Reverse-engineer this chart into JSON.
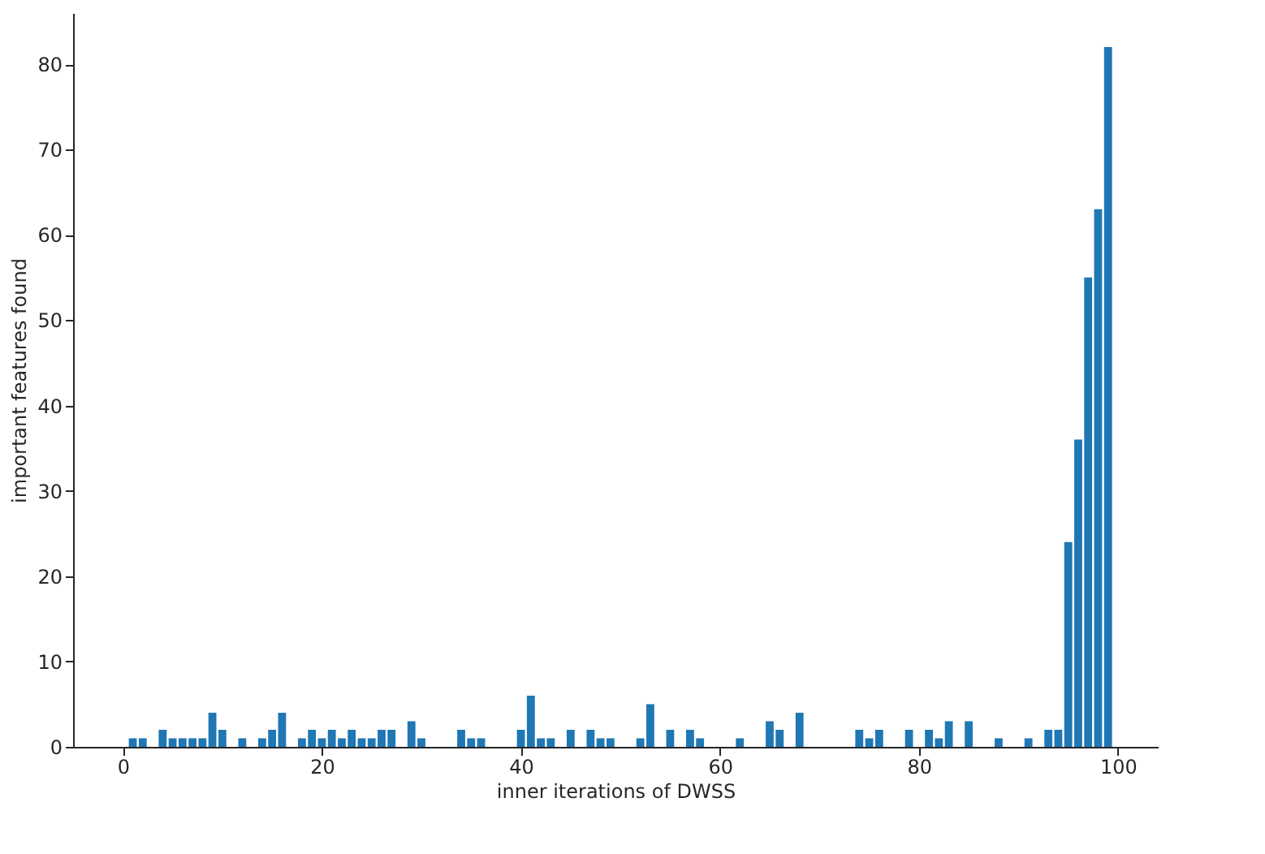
{
  "chart_data": {
    "type": "bar",
    "xlabel": "inner iterations of DWSS",
    "ylabel": "important features found",
    "x": [
      1,
      2,
      4,
      5,
      6,
      7,
      8,
      9,
      10,
      12,
      14,
      15,
      16,
      18,
      19,
      20,
      21,
      22,
      23,
      24,
      25,
      26,
      27,
      29,
      30,
      34,
      35,
      36,
      40,
      41,
      42,
      43,
      45,
      47,
      48,
      49,
      52,
      53,
      55,
      57,
      58,
      62,
      65,
      66,
      68,
      74,
      75,
      76,
      79,
      81,
      82,
      83,
      85,
      88,
      91,
      93,
      94,
      95,
      96,
      97,
      98,
      99
    ],
    "values": [
      1,
      1,
      2,
      1,
      1,
      1,
      1,
      4,
      2,
      1,
      1,
      2,
      4,
      1,
      2,
      1,
      2,
      1,
      2,
      1,
      1,
      2,
      2,
      3,
      1,
      2,
      1,
      1,
      2,
      6,
      1,
      1,
      2,
      2,
      1,
      1,
      1,
      5,
      2,
      2,
      1,
      1,
      3,
      2,
      4,
      2,
      1,
      2,
      2,
      2,
      1,
      3,
      3,
      1,
      1,
      2,
      2,
      24,
      36,
      55,
      63,
      82
    ],
    "color": "#1f77b4",
    "xlim": [
      -5,
      104
    ],
    "xticks": [
      0,
      20,
      40,
      60,
      80,
      100
    ],
    "ylim": [
      0,
      86
    ],
    "yticks": [
      0,
      10,
      20,
      30,
      40,
      50,
      60,
      70,
      80
    ],
    "grid": false
  }
}
